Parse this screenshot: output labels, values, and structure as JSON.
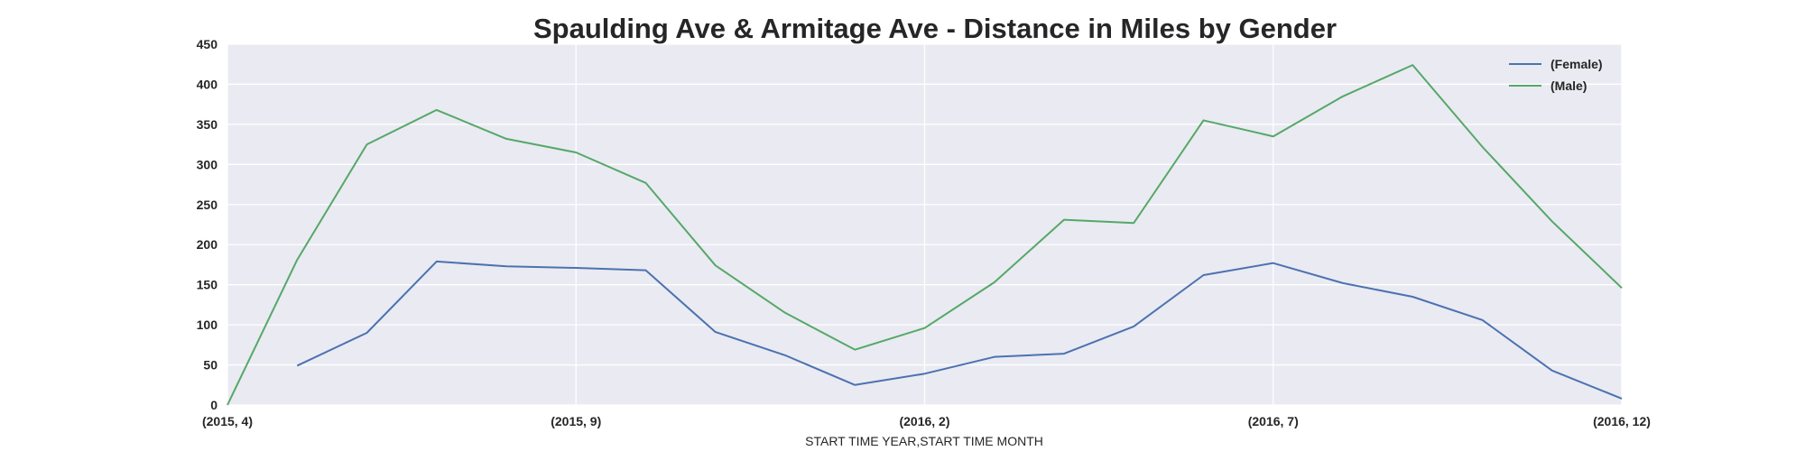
{
  "chart_data": {
    "type": "line",
    "title": "Spaulding Ave & Armitage Ave - Distance in Miles by Gender",
    "xlabel": "START TIME YEAR,START TIME MONTH",
    "ylabel": "",
    "ylim": [
      0,
      450
    ],
    "yticks": [
      0,
      50,
      100,
      150,
      200,
      250,
      300,
      350,
      400,
      450
    ],
    "categories": [
      "(2015, 4)",
      "(2015, 5)",
      "(2015, 6)",
      "(2015, 7)",
      "(2015, 8)",
      "(2015, 9)",
      "(2015, 10)",
      "(2015, 11)",
      "(2015, 12)",
      "(2016, 1)",
      "(2016, 2)",
      "(2016, 3)",
      "(2016, 4)",
      "(2016, 5)",
      "(2016, 6)",
      "(2016, 7)",
      "(2016, 8)",
      "(2016, 9)",
      "(2016, 10)",
      "(2016, 11)",
      "(2016, 12)"
    ],
    "xtick_labels": [
      {
        "index": 0,
        "label": "(2015, 4)"
      },
      {
        "index": 5,
        "label": "(2015, 9)"
      },
      {
        "index": 10,
        "label": "(2016, 2)"
      },
      {
        "index": 15,
        "label": "(2016, 7)"
      },
      {
        "index": 20,
        "label": "(2016, 12)"
      }
    ],
    "grid": true,
    "legend_position": "top-right",
    "background": "#eaeaf2",
    "series": [
      {
        "name": "(Female)",
        "color": "#4c72b0",
        "values": [
          null,
          49,
          90,
          179,
          173,
          171,
          168,
          91,
          62,
          25,
          39,
          60,
          64,
          98,
          162,
          177,
          152,
          135,
          106,
          43,
          8
        ]
      },
      {
        "name": "(Male)",
        "color": "#55a868",
        "values": [
          0,
          181,
          325,
          368,
          332,
          315,
          277,
          174,
          115,
          69,
          96,
          153,
          231,
          227,
          355,
          335,
          385,
          424,
          322,
          229,
          146
        ]
      }
    ]
  }
}
